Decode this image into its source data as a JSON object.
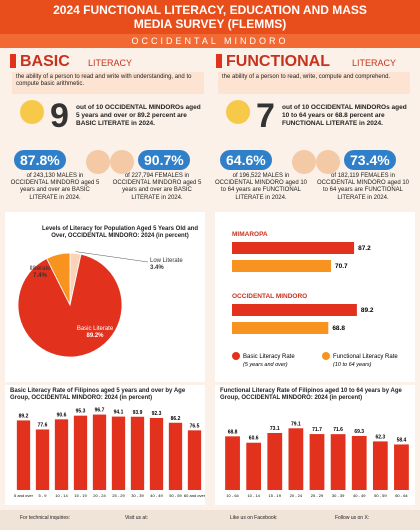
{
  "header": {
    "title": "2024 FUNCTIONAL LITERACY, EDUCATION AND MASS MEDIA SURVEY (FLEMMS)",
    "region": "OCCIDENTAL MINDORO"
  },
  "basic": {
    "title": "BASIC",
    "subtitle": "LITERACY",
    "definition": "the ability of a person to read and write with understanding, and to compute basic arithmetic.",
    "ratio": "9",
    "ratio_text": "out of 10 OCCIDENTAL MINDOROs aged 5 years and over or 89.2 percent are BASIC LITERATE in 2024.",
    "male": {
      "rate": "87.8%",
      "text": "of 243,130 MALES in OCCIDENTAL MINDORO aged 5 years and over are BASIC LITERATE in 2024."
    },
    "female": {
      "rate": "90.7%",
      "text": "of 227,794 FEMALES in OCCIDENTAL MINDORO aged 5 years and over are BASIC LITERATE in 2024."
    }
  },
  "functional": {
    "title": "FUNCTIONAL",
    "subtitle": "LITERACY",
    "definition": "the ability of a person to read, write, compute and comprehend.",
    "ratio": "7",
    "ratio_text": "out of 10 OCCIDENTAL MINDOROs aged 10 to 64 years or 68.8 percent are FUNCTIONAL LITERATE in 2024.",
    "male": {
      "rate": "64.6%",
      "text": "of 196,522 MALES in OCCIDENTAL MINDORO aged 10 to 64 years are FUNCTIONAL LITERATE in 2024."
    },
    "female": {
      "rate": "73.4%",
      "text": "of 182,119 FEMALES in OCCIDENTAL MINDORO aged 10 to 64 years are FUNCTIONAL LITERATE in 2024."
    }
  },
  "chart_data": [
    {
      "type": "pie",
      "title": "Levels of Literacy for Population Aged 5 Years Old and Over, OCCIDENTAL MINDORO: 2024 (in percent)",
      "categories": [
        "Low Literate",
        "Basic Literate",
        "Illiterate"
      ],
      "values": [
        3.4,
        89.2,
        7.4
      ],
      "value_labels": [
        "3.4%",
        "89.2%",
        "7.4%"
      ],
      "colors": [
        "#fbd3b8",
        "#e2311d",
        "#f7931e"
      ]
    },
    {
      "type": "hbar",
      "categories": [
        "MIMAROPA",
        "OCCIDENTAL MINDORO"
      ],
      "xlim": [
        0,
        100
      ],
      "series": [
        {
          "name": "Basic Literacy Rate",
          "subname": "(5 years and over)",
          "color": "#e2311d",
          "values": [
            87.2,
            89.2
          ]
        },
        {
          "name": "Functional Literacy Rate",
          "subname": "(10 to 64 years)",
          "color": "#f7931e",
          "values": [
            70.7,
            68.8
          ]
        }
      ]
    },
    {
      "type": "bar",
      "title": "Basic Literacy Rate of Filipinos aged 5 years and over by Age Group, OCCIDENTAL MINDORO: 2024 (in percent)",
      "categories": [
        "5 and over",
        "5 - 9",
        "10 - 14",
        "15 - 19",
        "20 - 24",
        "25 - 29",
        "30 - 39",
        "40 - 49",
        "50 - 59",
        "60 and over"
      ],
      "values": [
        89.2,
        77.6,
        90.6,
        95.3,
        96.7,
        94.1,
        93.9,
        92.3,
        86.2,
        76.5
      ],
      "color": "#e2311d",
      "ylim": [
        0,
        100
      ]
    },
    {
      "type": "bar",
      "title": "Functional Literacy Rate of Filipinos aged 10 to 64 years by Age Group, OCCIDENTAL MINDORO: 2024 (in percent)",
      "categories": [
        "10 - 64",
        "10 - 14",
        "15 - 19",
        "20 - 24",
        "25 - 29",
        "30 - 39",
        "40 - 49",
        "50 - 59",
        "60 - 64"
      ],
      "values": [
        68.8,
        60.6,
        73.1,
        79.1,
        71.7,
        71.6,
        69.3,
        62.3,
        58.4
      ],
      "color": "#e2311d",
      "ylim": [
        0,
        100
      ]
    }
  ],
  "footer": [
    "For technical inquiries:",
    "Visit us at:",
    "Like us on Facebook:",
    "Follow us on X:"
  ]
}
